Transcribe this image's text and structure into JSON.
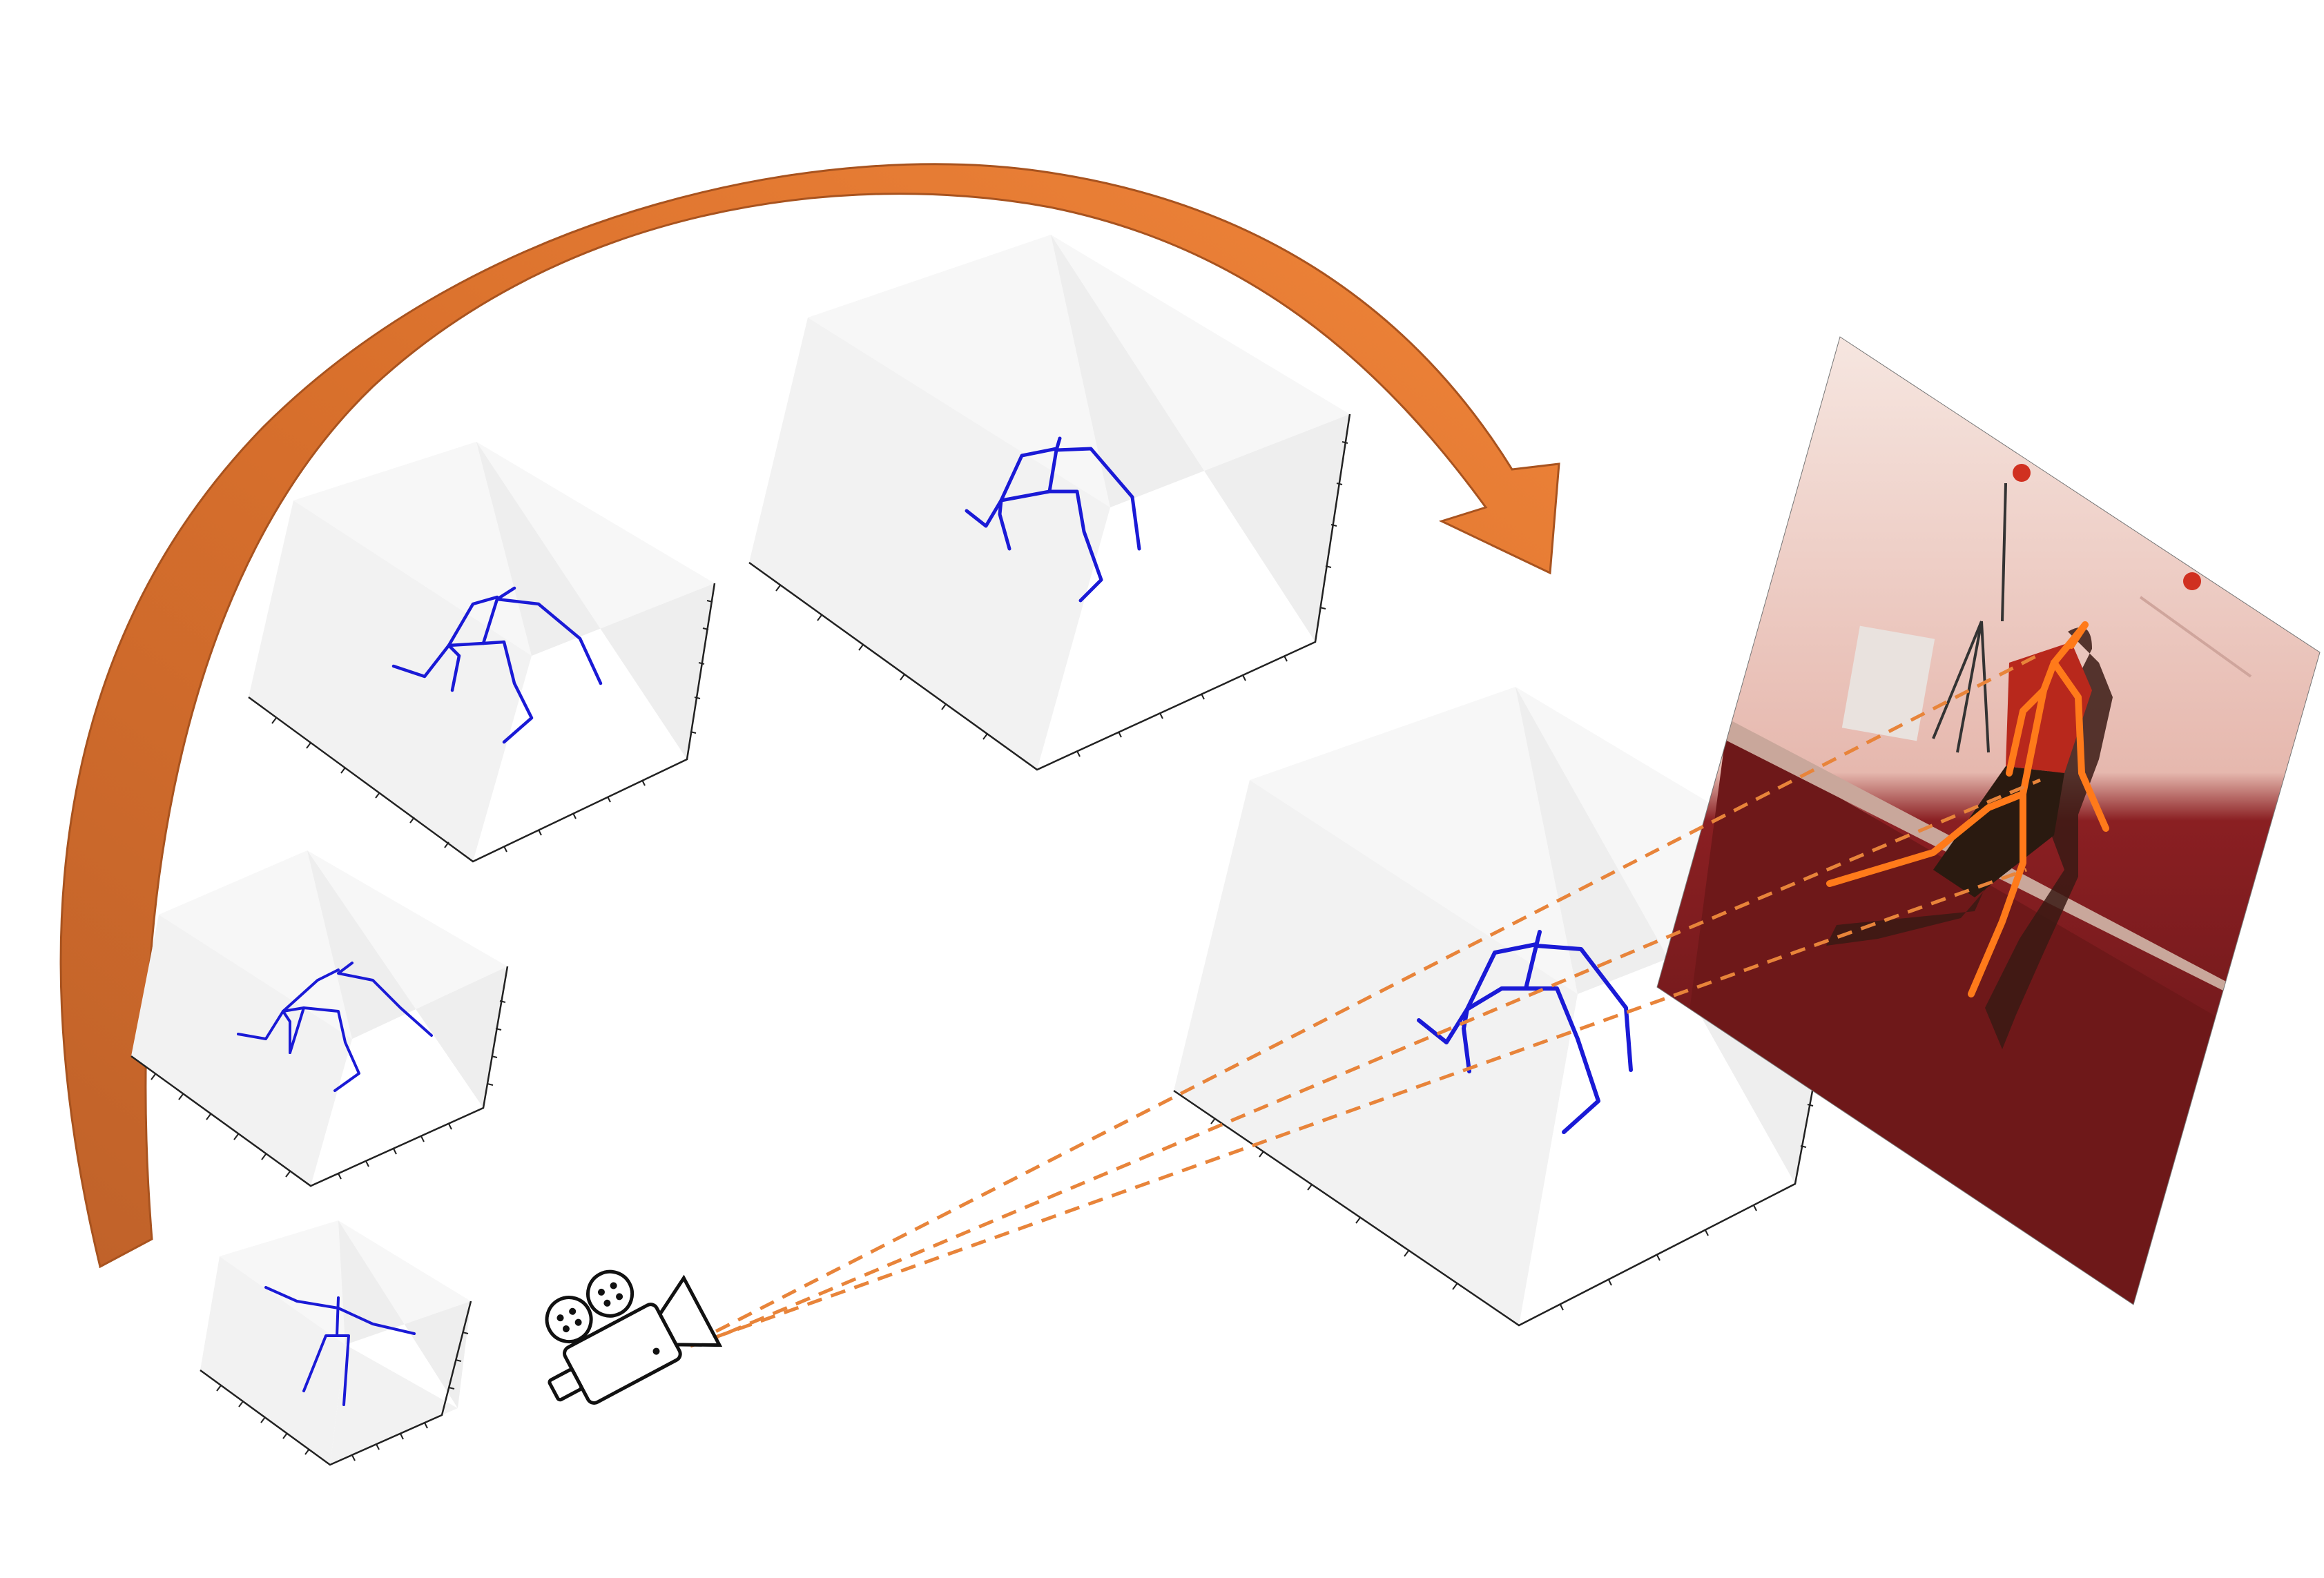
{
  "colors": {
    "skeleton": "#1a1ad6",
    "overlay_skeleton": "#ff7a1a",
    "arrow": "#e97b32",
    "ray": "#e8843a",
    "camera": "#111111"
  },
  "figure": {
    "arrow": {
      "icon": "curved-arrow",
      "direction": "clockwise"
    },
    "camera": {
      "icon": "video-camera-icon"
    },
    "photo": {
      "subject": "person-with-pose-overlay"
    },
    "plots": [
      {
        "id": "plot-small",
        "skeleton": "t-pose"
      },
      {
        "id": "plot-mid-left",
        "skeleton": "bent-pose"
      },
      {
        "id": "plot-upper-left",
        "skeleton": "bent-pose"
      },
      {
        "id": "plot-top-center",
        "skeleton": "bent-pose"
      },
      {
        "id": "plot-large",
        "skeleton": "bent-pose"
      }
    ],
    "ray_count": 3
  }
}
